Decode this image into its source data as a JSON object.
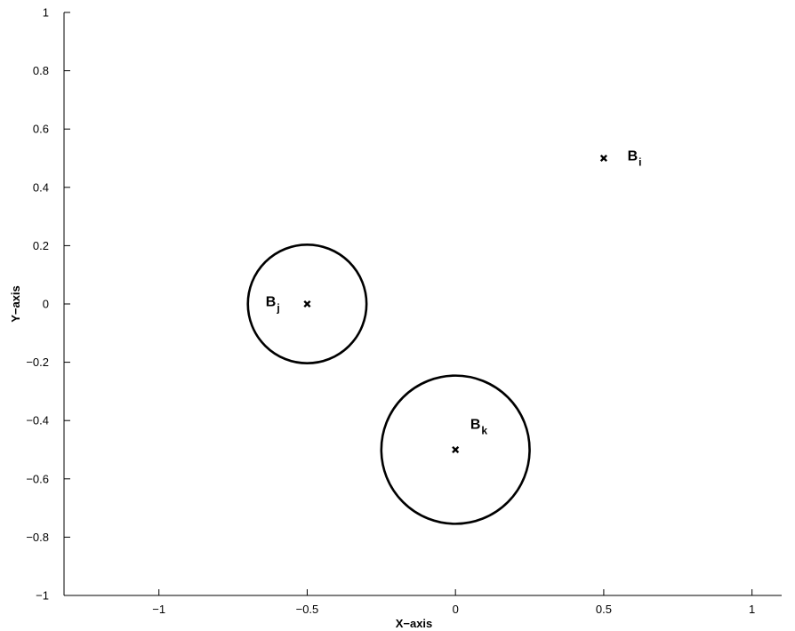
{
  "chart_data": {
    "type": "scatter",
    "title": "",
    "xlabel": "X−axis",
    "ylabel": "Y−axis",
    "xlim": [
      -1.32,
      1.1
    ],
    "ylim": [
      -1,
      1
    ],
    "grid": false,
    "legend": "none",
    "colors": {
      "marks": "#000000",
      "background": "#ffffff"
    },
    "x_ticks": [
      {
        "value": -1,
        "label": "−1"
      },
      {
        "value": -0.5,
        "label": "−0.5"
      },
      {
        "value": 0,
        "label": "0"
      },
      {
        "value": 0.5,
        "label": "0.5"
      },
      {
        "value": 1,
        "label": "1"
      }
    ],
    "y_ticks": [
      {
        "value": -1,
        "label": "−1"
      },
      {
        "value": -0.8,
        "label": "−0.8"
      },
      {
        "value": -0.6,
        "label": "−0.6"
      },
      {
        "value": -0.4,
        "label": "−0.4"
      },
      {
        "value": -0.2,
        "label": "−0.2"
      },
      {
        "value": 0,
        "label": "0"
      },
      {
        "value": 0.2,
        "label": "0.2"
      },
      {
        "value": 0.4,
        "label": "0.4"
      },
      {
        "value": 0.6,
        "label": "0.6"
      },
      {
        "value": 0.8,
        "label": "0.8"
      },
      {
        "value": 1,
        "label": "1"
      }
    ],
    "points": [
      {
        "id": "i",
        "label": "B",
        "sub": "i",
        "x": 0.5,
        "y": 0.5,
        "radius": 0,
        "label_x": 0.58,
        "label_y": 0.51
      },
      {
        "id": "j",
        "label": "B",
        "sub": "j",
        "x": -0.5,
        "y": 0.0,
        "radius": 0.2,
        "label_x": -0.64,
        "label_y": 0.01
      },
      {
        "id": "k",
        "label": "B",
        "sub": "k",
        "x": 0.0,
        "y": -0.5,
        "radius": 0.25,
        "label_x": 0.05,
        "label_y": -0.41
      }
    ]
  }
}
